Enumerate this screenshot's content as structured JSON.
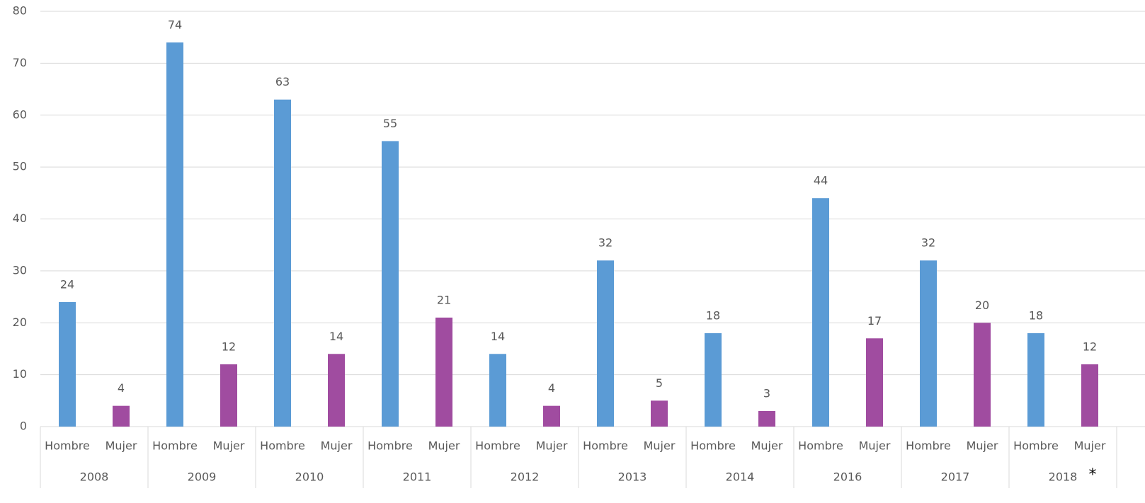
{
  "chart_data": {
    "type": "bar",
    "categories": [
      "2008",
      "2009",
      "2010",
      "2011",
      "2012",
      "2013",
      "2014",
      "2016",
      "2017",
      "2018"
    ],
    "series": [
      {
        "name": "Hombre",
        "color": "#5b9bd5",
        "values": [
          24,
          74,
          63,
          55,
          14,
          32,
          18,
          44,
          32,
          18
        ]
      },
      {
        "name": "Mujer",
        "color": "#a04ca0",
        "values": [
          4,
          12,
          14,
          21,
          4,
          5,
          3,
          17,
          20,
          12
        ]
      }
    ],
    "ylim": [
      0,
      80
    ],
    "yticks": [
      0,
      10,
      20,
      30,
      40,
      50,
      60,
      70,
      80
    ],
    "grid": true,
    "annotation": "*"
  }
}
